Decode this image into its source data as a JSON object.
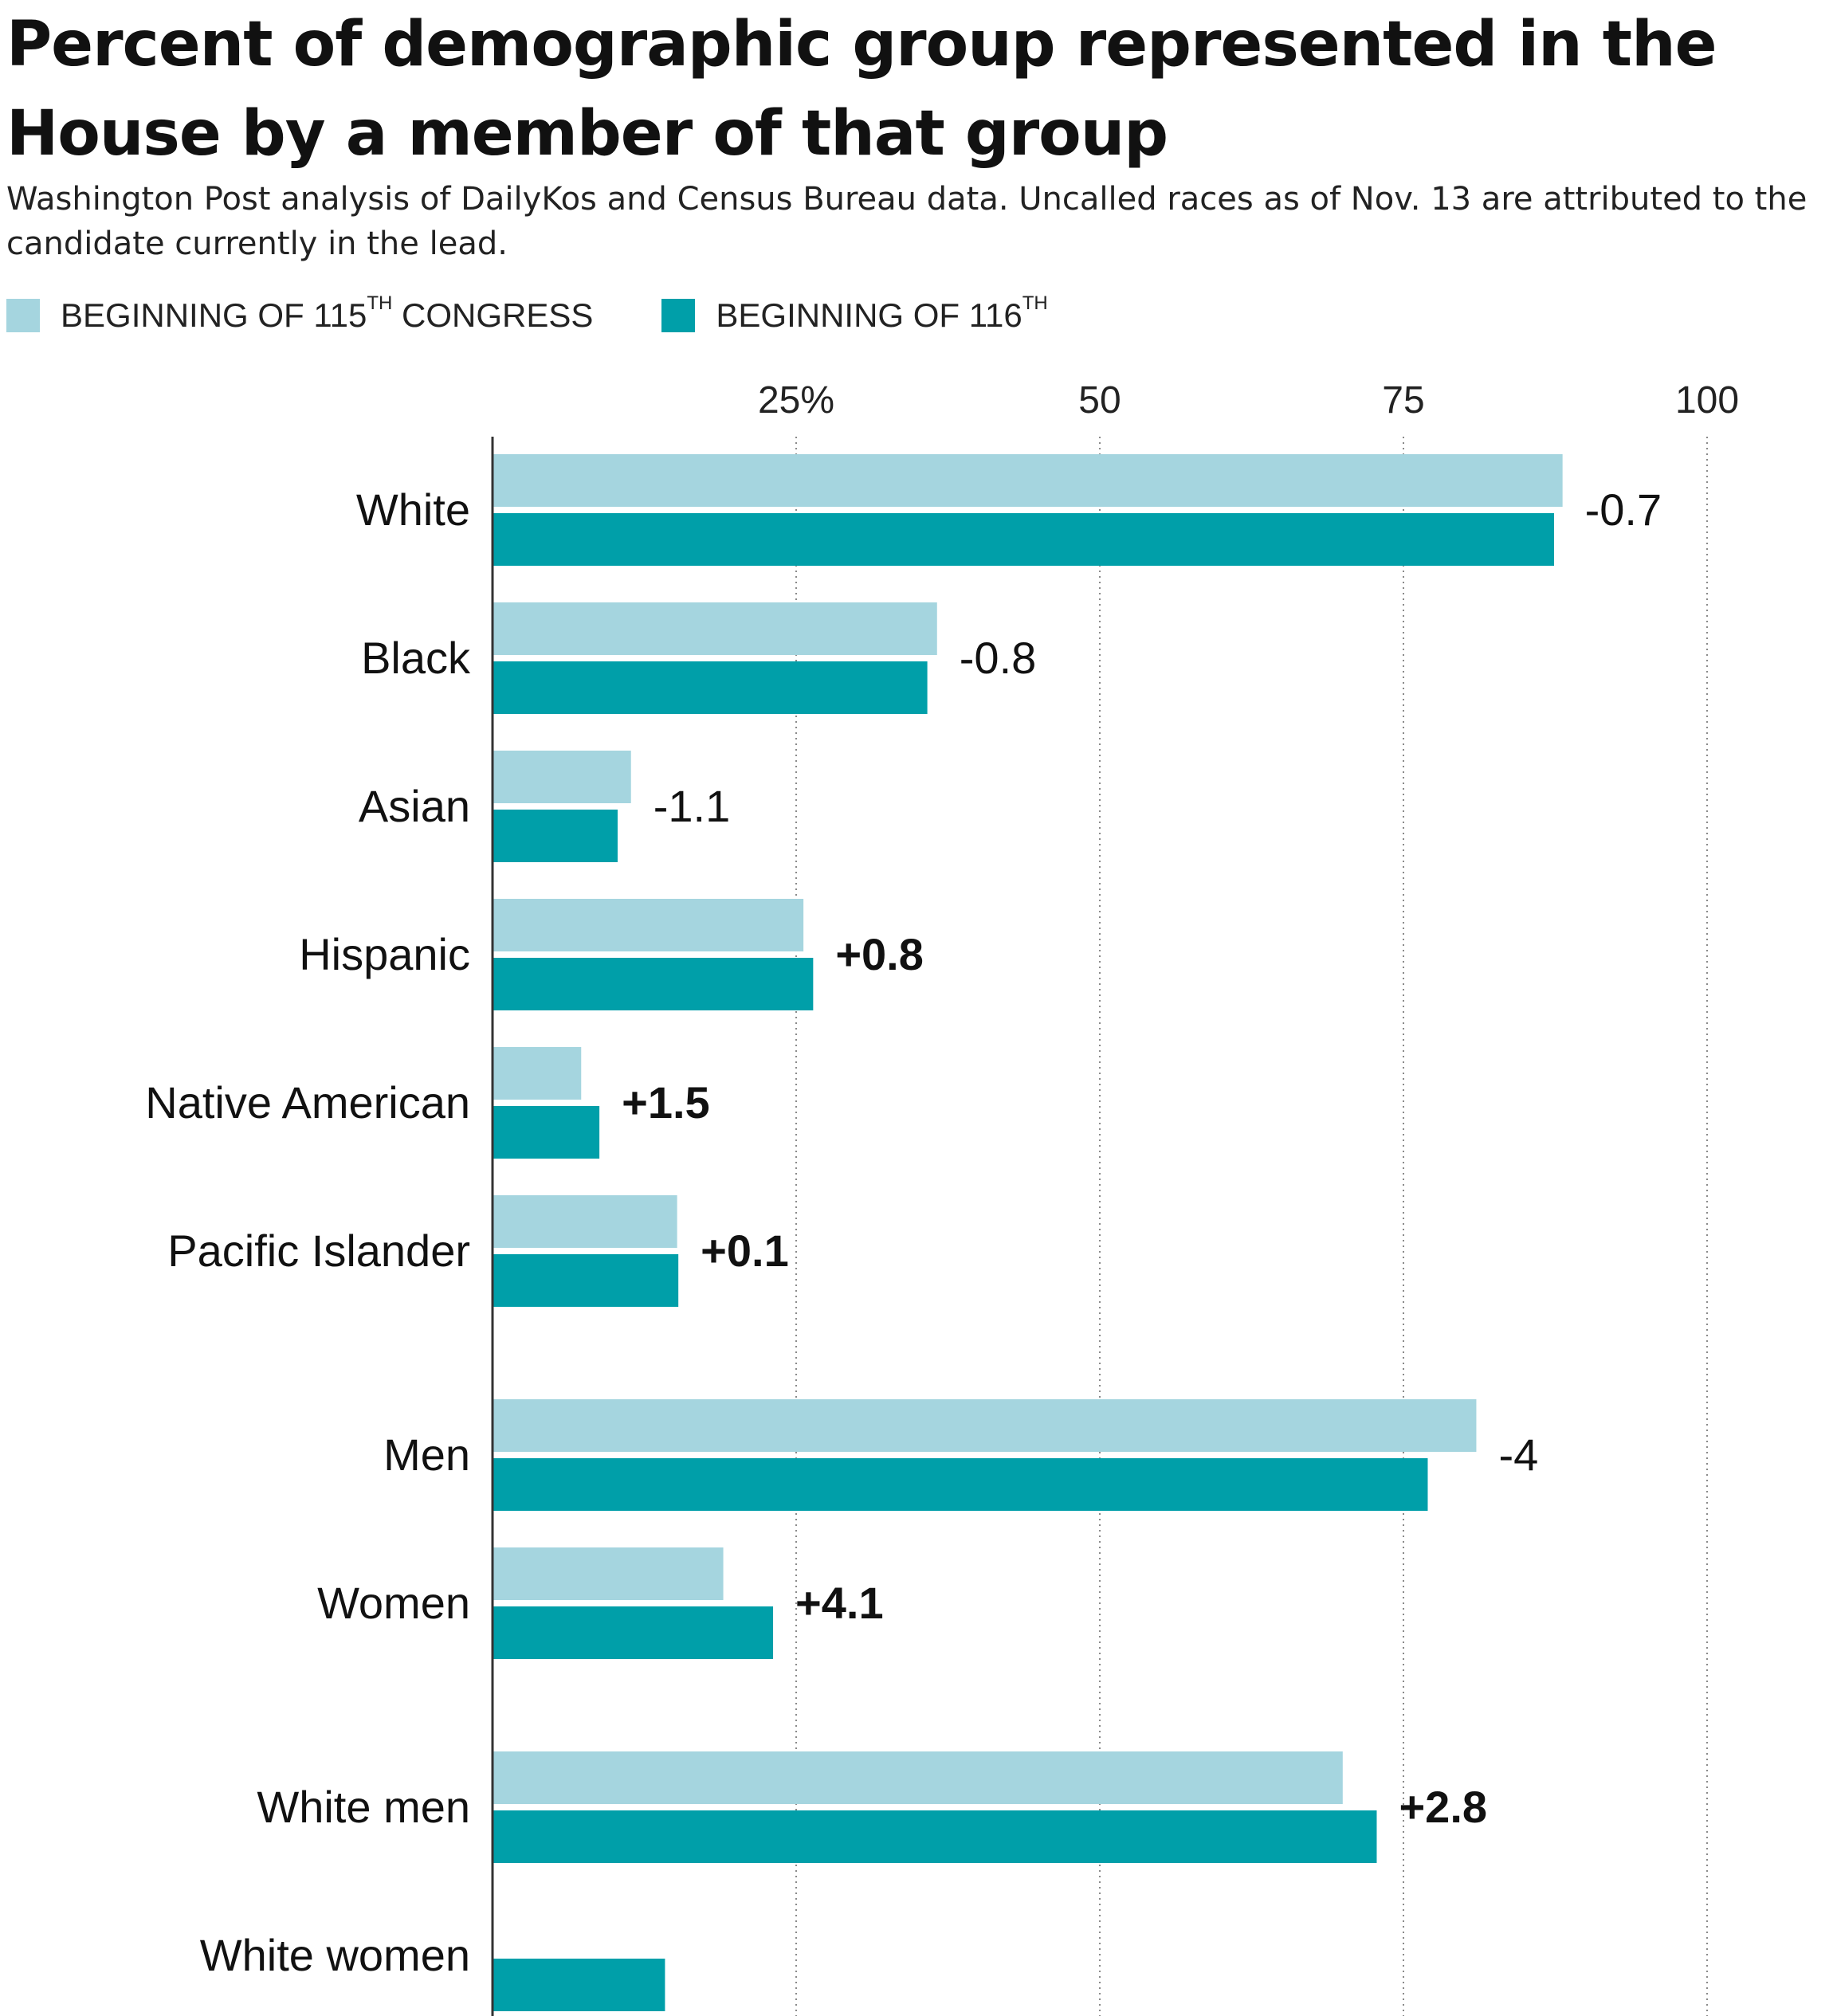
{
  "title": "Percent of demographic group represented in the House by a member of that group",
  "subtitle": "Washington Post analysis of DailyKos and Census Bureau data. Uncalled races as of Nov. 13 are attributed to the candidate currently in the lead.",
  "legend": [
    {
      "label": "BEGINNING OF 115",
      "sup": "TH",
      "suffix": " CONGRESS",
      "color": "#a5d5df"
    },
    {
      "label": "BEGINNING OF 116",
      "sup": "TH",
      "suffix": "",
      "color": "#009fa9"
    }
  ],
  "chart_data": {
    "type": "bar",
    "orientation": "horizontal",
    "xlim": [
      0,
      100
    ],
    "x_ticks": [
      {
        "value": 25,
        "label": "25%"
      },
      {
        "value": 50,
        "label": "50"
      },
      {
        "value": 75,
        "label": "75"
      },
      {
        "value": 100,
        "label": "100"
      }
    ],
    "grid": "vertical dotted",
    "categories": [
      "White",
      "Black",
      "Asian",
      "Hispanic",
      "Native American",
      "Pacific Islander",
      "Men",
      "Women",
      "White men",
      "White women"
    ],
    "groups": [
      [
        0,
        1,
        2,
        3,
        4,
        5
      ],
      [
        6,
        7
      ],
      [
        8,
        9
      ]
    ],
    "series": [
      {
        "name": "BEGINNING OF 115TH CONGRESS",
        "color": "#a5d5df",
        "values": [
          88.1,
          36.6,
          11.4,
          25.6,
          7.3,
          15.2,
          81.0,
          19.0,
          70.0,
          null
        ]
      },
      {
        "name": "BEGINNING OF 116TH",
        "color": "#009fa9",
        "values": [
          87.4,
          35.8,
          10.3,
          26.4,
          8.8,
          15.3,
          77.0,
          23.1,
          72.8,
          14.2
        ]
      }
    ],
    "change_labels": [
      {
        "text": "-0.7",
        "bold": false
      },
      {
        "text": "-0.8",
        "bold": false
      },
      {
        "text": "-1.1",
        "bold": false
      },
      {
        "text": "+0.8",
        "bold": true
      },
      {
        "text": "+1.5",
        "bold": true
      },
      {
        "text": "+0.1",
        "bold": true
      },
      {
        "text": "-4",
        "bold": false
      },
      {
        "text": "+4.1",
        "bold": true
      },
      {
        "text": "+2.8",
        "bold": true
      },
      {
        "text": "",
        "bold": false
      }
    ]
  }
}
